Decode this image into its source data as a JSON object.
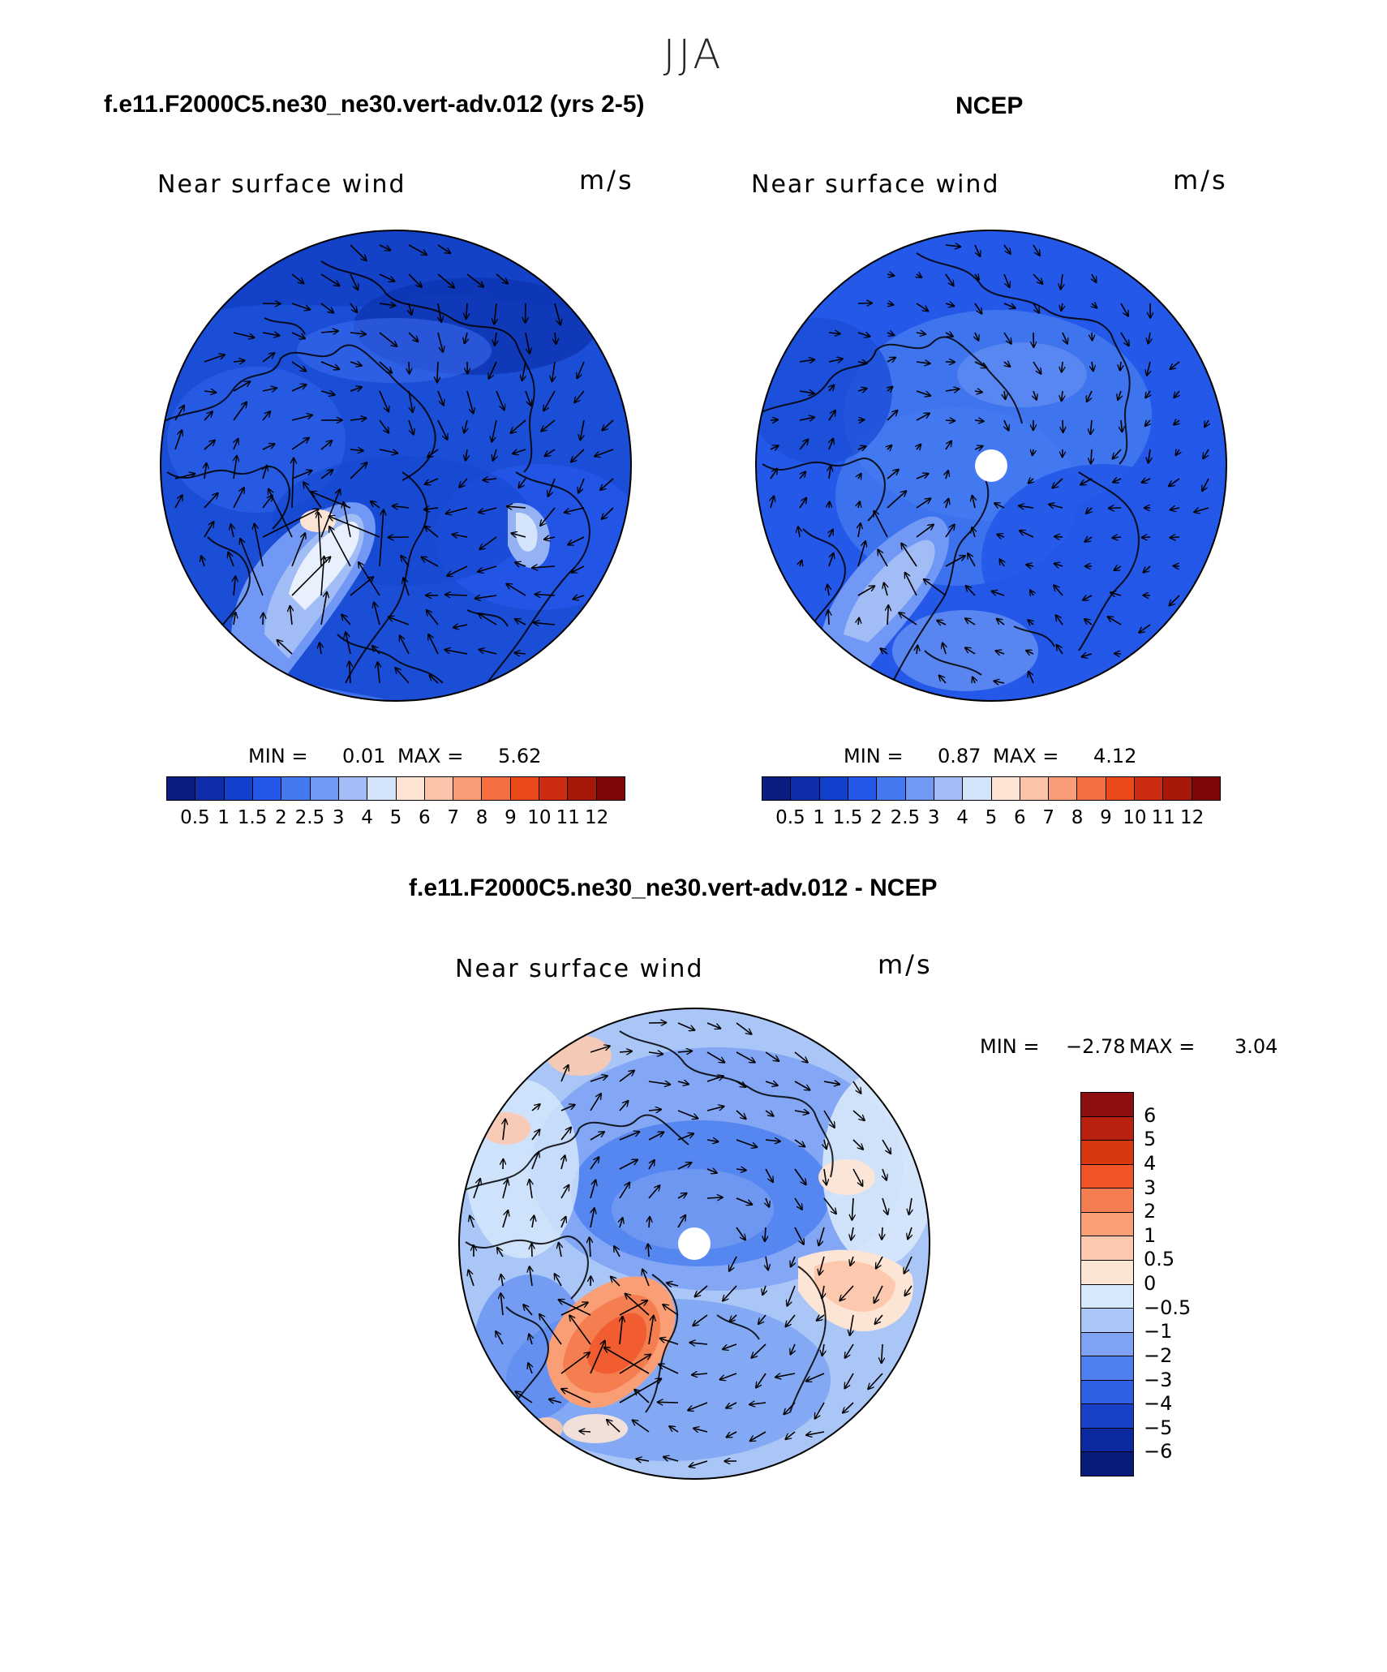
{
  "season": "JJA",
  "panels": [
    {
      "case": "f.e11.F2000C5.ne30_ne30.vert-adv.012 (yrs 2-5)",
      "label": "Near surface wind",
      "units": "m/s",
      "min_label": "MIN =",
      "min_value": "0.01",
      "max_label": "MAX =",
      "max_value": "5.62"
    },
    {
      "case": "NCEP",
      "label": "Near surface wind",
      "units": "m/s",
      "min_label": "MIN =",
      "min_value": "0.87",
      "max_label": "MAX =",
      "max_value": "4.12"
    },
    {
      "case": "f.e11.F2000C5.ne30_ne30.vert-adv.012 - NCEP",
      "label": "Near surface wind",
      "units": "m/s",
      "min_label": "MIN =",
      "min_value": "−2.78",
      "max_label": "MAX =",
      "max_value": "3.04"
    }
  ],
  "colorbar_abs": {
    "levels": [
      "0.5",
      "1",
      "1.5",
      "2",
      "2.5",
      "3",
      "4",
      "5",
      "6",
      "7",
      "8",
      "9",
      "10",
      "11",
      "12"
    ],
    "colors": [
      "#0a1e82",
      "#0d2ea8",
      "#1240cc",
      "#2458e8",
      "#4479f0",
      "#7098f4",
      "#a2bdf6",
      "#d4e5fb",
      "#fde3d4",
      "#fbc4a8",
      "#f99c78",
      "#f46e42",
      "#ea4a1a",
      "#cc2c10",
      "#a8180a",
      "#7e0808"
    ]
  },
  "colorbar_diff": {
    "levels": [
      "6",
      "5",
      "4",
      "3",
      "2",
      "1",
      "0.5",
      "0",
      "−0.5",
      "−1",
      "−2",
      "−3",
      "−4",
      "−5",
      "−6"
    ],
    "colors": [
      "#8c0e0e",
      "#b82010",
      "#d83810",
      "#f05428",
      "#f57e50",
      "#fa9e76",
      "#fcc9ae",
      "#fde5d6",
      "#d8e8fb",
      "#aac6f7",
      "#7ea3f3",
      "#4f80ef",
      "#2e60e6",
      "#1840c8",
      "#0b2aa0",
      "#071c7a"
    ]
  }
}
